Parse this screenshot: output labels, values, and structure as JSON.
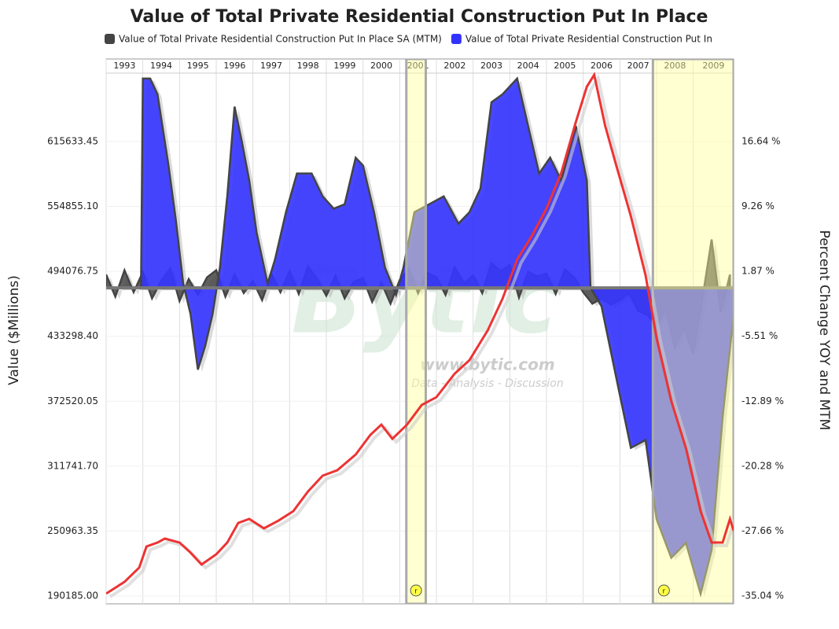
{
  "chart_data": {
    "type": "area-line",
    "title": "Value of Total Private Residential Construction Put In Place",
    "ylabel": "Value ($Millions)",
    "y2label": "Percent Change YOY and MTM",
    "watermark": {
      "brand": "Bytic",
      "url": "www.bytic.com",
      "tagline": "Data - Analysis - Discussion"
    },
    "xlim": [
      1993,
      2010.1
    ],
    "xticks": [
      {
        "value": 1993,
        "label": "1993"
      },
      {
        "value": 1994,
        "label": "1994"
      },
      {
        "value": 1995,
        "label": "1995"
      },
      {
        "value": 1996,
        "label": "1996"
      },
      {
        "value": 1997,
        "label": "1997"
      },
      {
        "value": 1998,
        "label": "1998"
      },
      {
        "value": 1999,
        "label": "1999"
      },
      {
        "value": 2000,
        "label": "2000"
      },
      {
        "value": 2001,
        "label": "2001"
      },
      {
        "value": 2002,
        "label": "2002"
      },
      {
        "value": 2003,
        "label": "2003"
      },
      {
        "value": 2004,
        "label": "2004"
      },
      {
        "value": 2005,
        "label": "2005"
      },
      {
        "value": 2006,
        "label": "2006"
      },
      {
        "value": 2007,
        "label": "2007"
      },
      {
        "value": 2008,
        "label": "2008"
      },
      {
        "value": 2009,
        "label": "2009"
      }
    ],
    "ylim": [
      182827,
      692893
    ],
    "yticks": [
      {
        "value": 190185,
        "label": "190185.00"
      },
      {
        "value": 250963.35,
        "label": "250963.35"
      },
      {
        "value": 311741.7,
        "label": "311741.70"
      },
      {
        "value": 372520.05,
        "label": "372520.05"
      },
      {
        "value": 433298.4,
        "label": "433298.40"
      },
      {
        "value": 494076.75,
        "label": "494076.75"
      },
      {
        "value": 554855.1,
        "label": "554855.10"
      },
      {
        "value": 615633.45,
        "label": "615633.45"
      }
    ],
    "y2lim": [
      -35.93,
      26.02
    ],
    "y2ticks": [
      {
        "value": -35.04,
        "label": "-35.04 %"
      },
      {
        "value": -27.66,
        "label": "-27.66 %"
      },
      {
        "value": -20.28,
        "label": "-20.28 %"
      },
      {
        "value": -12.89,
        "label": "-12.89 %"
      },
      {
        "value": -5.51,
        "label": "-5.51 %"
      },
      {
        "value": 1.87,
        "label": "1.87 %"
      },
      {
        "value": 9.26,
        "label": "9.26 %"
      },
      {
        "value": 16.64,
        "label": "16.64 %"
      }
    ],
    "grid": true,
    "highlights": [
      {
        "start": 2001.18,
        "end": 2001.71,
        "label": "r"
      },
      {
        "start": 2007.9,
        "end": 2010.1,
        "label": "r"
      }
    ],
    "series": [
      {
        "name": "Value of Total Private Residential Construction Put In Place SA (MTM)",
        "color": "#444444",
        "kind": "area",
        "axis": "y2",
        "x": [
          1993,
          1993.25,
          1993.5,
          1993.75,
          1994,
          1994.25,
          1994.5,
          1994.75,
          1995,
          1995.25,
          1995.5,
          1995.75,
          1996,
          1996.25,
          1996.5,
          1996.75,
          1997,
          1997.25,
          1997.5,
          1997.75,
          1998,
          1998.25,
          1998.5,
          1998.75,
          1999,
          1999.25,
          1999.5,
          1999.75,
          2000,
          2000.25,
          2000.5,
          2000.75,
          2001,
          2001.25,
          2001.5,
          2001.75,
          2002,
          2002.25,
          2002.5,
          2002.75,
          2003,
          2003.25,
          2003.5,
          2003.75,
          2004,
          2004.25,
          2004.5,
          2004.75,
          2005,
          2005.25,
          2005.5,
          2005.75,
          2006,
          2006.25,
          2006.5,
          2006.75,
          2007,
          2007.25,
          2007.5,
          2007.75,
          2008,
          2008.25,
          2008.5,
          2008.75,
          2009,
          2009.25,
          2009.5,
          2009.75,
          2010
        ],
        "values": [
          1.5,
          -1,
          2,
          -0.5,
          1.8,
          -1.2,
          0.8,
          2.2,
          -1.5,
          1,
          -0.8,
          1.2,
          2,
          -1,
          1.5,
          -0.6,
          0.8,
          -1.4,
          1.6,
          -0.5,
          1.9,
          -0.7,
          2.4,
          1,
          -0.9,
          1.4,
          -1.2,
          0.7,
          1.1,
          -1.6,
          0.6,
          -1.8,
          0.9,
          2.1,
          -0.6,
          1.7,
          1.2,
          -0.8,
          2.3,
          0.5,
          1.4,
          -0.6,
          2.8,
          1.9,
          2.6,
          -1.1,
          1.8,
          1.3,
          1.6,
          -0.7,
          2.1,
          1.2,
          -0.5,
          -1.8,
          -1.2,
          -1.9,
          -1.4,
          -0.6,
          -2.6,
          -3.1,
          -4.2,
          -2.5,
          -6.8,
          -4.5,
          -7.5,
          -1.2,
          5.5,
          -2.8,
          1.5
        ]
      },
      {
        "name": "Value of Total Private Residential Construction Put In",
        "color": "#3333ff",
        "kind": "area",
        "axis": "y2",
        "x": [
          1993.95,
          1994,
          1994.2,
          1994.4,
          1994.7,
          1994.9,
          1995.1,
          1995.3,
          1995.5,
          1995.7,
          1995.9,
          1996.1,
          1996.3,
          1996.5,
          1996.7,
          1996.9,
          1997.1,
          1997.4,
          1997.6,
          1997.9,
          1998.2,
          1998.6,
          1998.9,
          1999.2,
          1999.5,
          1999.8,
          2000,
          2000.3,
          2000.6,
          2000.9,
          2001.1,
          2001.4,
          2001.8,
          2002.2,
          2002.6,
          2002.9,
          2003.2,
          2003.5,
          2003.8,
          2004.2,
          2004.5,
          2004.8,
          2005.1,
          2005.4,
          2005.8,
          2006.1,
          2006.2,
          2006.5,
          2006.9,
          2007.3,
          2007.7,
          2008,
          2008.4,
          2008.8,
          2009.2,
          2009.5,
          2009.8,
          2010.1
        ],
        "values": [
          0,
          23.8,
          23.8,
          22,
          13.9,
          7.7,
          0.5,
          -3,
          -9.3,
          -6.6,
          -3,
          2.3,
          10.4,
          20.6,
          16.6,
          12.2,
          6.3,
          0.5,
          3.2,
          8.6,
          13,
          13,
          10.4,
          9,
          9.5,
          14.8,
          13.9,
          8.6,
          2.3,
          -0.8,
          2.3,
          8.6,
          9.5,
          10.4,
          7.3,
          8.6,
          11.3,
          21.1,
          22,
          23.8,
          18.4,
          13,
          14.8,
          12.2,
          18.4,
          12.2,
          0,
          -2.1,
          -10.2,
          -18.2,
          -17.3,
          -26.3,
          -30.7,
          -29,
          -34.8,
          -29.8,
          -14.7,
          -3
        ]
      },
      {
        "color": "#ee3333",
        "kind": "line",
        "x": [
          1993,
          1993.5,
          1993.9,
          1994.1,
          1994.4,
          1994.6,
          1995,
          1995.3,
          1995.6,
          1996,
          1996.3,
          1996.6,
          1996.9,
          1997.3,
          1997.7,
          1998.1,
          1998.5,
          1998.9,
          1999.3,
          1999.8,
          2000.2,
          2000.5,
          2000.8,
          2001.2,
          2001.6,
          2002,
          2002.5,
          2002.9,
          2003.4,
          2003.8,
          2004.2,
          2004.6,
          2005,
          2005.4,
          2005.8,
          2006.1,
          2006.3,
          2006.6,
          2006.9,
          2007.3,
          2007.7,
          2008,
          2008.4,
          2008.8,
          2009.2,
          2009.5,
          2009.8,
          2010,
          2010.1
        ],
        "values": [
          192400,
          203400,
          216700,
          236500,
          240200,
          243900,
          240200,
          230700,
          219600,
          229200,
          240200,
          258600,
          262300,
          253500,
          260800,
          269600,
          288000,
          302800,
          307900,
          322600,
          341000,
          350600,
          337300,
          350600,
          369000,
          376300,
          398400,
          410900,
          438900,
          468300,
          505100,
          527200,
          552900,
          586000,
          633900,
          667000,
          678000,
          630200,
          593400,
          545600,
          490400,
          431500,
          372700,
          328500,
          269600,
          240200,
          240200,
          262300,
          251300
        ]
      }
    ]
  }
}
